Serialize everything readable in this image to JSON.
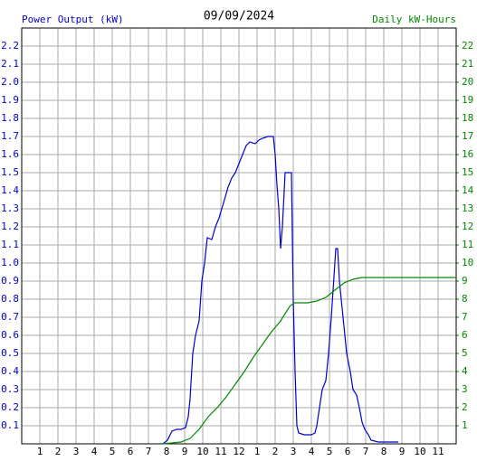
{
  "chart_data": {
    "type": "line",
    "title": "09/09/2024",
    "y_label": "Power Output (kW)",
    "y2_label": "Daily kW-Hours",
    "xlim": [
      0,
      24
    ],
    "ylim": [
      0,
      2.3
    ],
    "y2lim": [
      0,
      23
    ],
    "grid": true,
    "xticks": [
      1,
      2,
      3,
      4,
      5,
      6,
      7,
      8,
      9,
      10,
      11,
      12,
      {
        "value": 13,
        "label": "1"
      },
      {
        "value": 14,
        "label": "2"
      },
      {
        "value": 15,
        "label": "3"
      },
      {
        "value": 16,
        "label": "4"
      },
      {
        "value": 17,
        "label": "5"
      },
      {
        "value": 18,
        "label": "6"
      },
      {
        "value": 19,
        "label": "7"
      },
      {
        "value": 20,
        "label": "8"
      },
      {
        "value": 21,
        "label": "9"
      },
      {
        "value": 22,
        "label": "10"
      },
      {
        "value": 23,
        "label": "11"
      }
    ],
    "yticks": [
      0.1,
      0.2,
      0.3,
      0.4,
      0.5,
      0.6,
      0.7,
      0.8,
      0.9,
      {
        "value": 1,
        "label": "1.0"
      },
      1.1,
      1.2,
      1.3,
      1.4,
      1.5,
      1.6,
      1.7,
      1.8,
      1.9,
      {
        "value": 2,
        "label": "2.0"
      },
      2.1,
      2.2
    ],
    "y2ticks": [
      1,
      2,
      3,
      4,
      5,
      6,
      7,
      8,
      9,
      10,
      11,
      12,
      13,
      14,
      15,
      16,
      17,
      18,
      19,
      20,
      21,
      22
    ],
    "series": [
      {
        "name": "Power Output (kW)",
        "color": "#0000cc",
        "x": [
          7.8,
          8.05,
          8.3,
          8.55,
          8.8,
          9.05,
          9.2,
          9.3,
          9.45,
          9.6,
          9.8,
          9.95,
          10.1,
          10.25,
          10.5,
          10.7,
          10.9,
          11.05,
          11.2,
          11.4,
          11.6,
          11.8,
          12.0,
          12.2,
          12.4,
          12.6,
          12.9,
          13.1,
          13.3,
          13.6,
          13.9,
          14.0,
          14.1,
          14.2,
          14.3,
          14.4,
          14.55,
          14.9,
          15.0,
          15.1,
          15.2,
          15.3,
          15.6,
          16.0,
          16.2,
          16.3,
          16.45,
          16.6,
          16.8,
          16.95,
          17.1,
          17.2,
          17.35,
          17.45,
          17.55,
          17.65,
          17.8,
          17.95,
          18.15,
          18.3,
          18.5,
          18.65,
          18.8,
          18.95,
          19.15,
          19.3,
          19.7,
          20.8
        ],
        "values": [
          0,
          0.02,
          0.07,
          0.08,
          0.08,
          0.09,
          0.15,
          0.25,
          0.5,
          0.6,
          0.68,
          0.9,
          1.0,
          1.14,
          1.13,
          1.2,
          1.25,
          1.3,
          1.35,
          1.42,
          1.47,
          1.5,
          1.55,
          1.6,
          1.65,
          1.67,
          1.66,
          1.68,
          1.69,
          1.7,
          1.7,
          1.6,
          1.43,
          1.3,
          1.08,
          1.2,
          1.5,
          1.5,
          0.8,
          0.4,
          0.1,
          0.06,
          0.05,
          0.05,
          0.06,
          0.1,
          0.2,
          0.3,
          0.35,
          0.5,
          0.7,
          0.85,
          1.08,
          1.08,
          0.9,
          0.8,
          0.65,
          0.5,
          0.4,
          0.3,
          0.27,
          0.2,
          0.12,
          0.08,
          0.05,
          0.02,
          0.01,
          0.01
        ]
      },
      {
        "name": "Daily kW-Hours",
        "color": "#008800",
        "axis": "y2",
        "x": [
          7.8,
          8.8,
          9.3,
          9.8,
          10.3,
          10.8,
          11.3,
          11.8,
          12.3,
          12.8,
          13.3,
          13.8,
          14.3,
          14.8,
          15.05,
          15.8,
          16.3,
          16.8,
          17.3,
          17.8,
          18.3,
          18.8,
          19.8,
          24
        ],
        "values": [
          0,
          0.1,
          0.3,
          0.8,
          1.5,
          2.0,
          2.6,
          3.3,
          4.0,
          4.8,
          5.5,
          6.2,
          6.8,
          7.6,
          7.8,
          7.8,
          7.9,
          8.1,
          8.5,
          8.9,
          9.1,
          9.2,
          9.2,
          9.2
        ]
      }
    ]
  }
}
